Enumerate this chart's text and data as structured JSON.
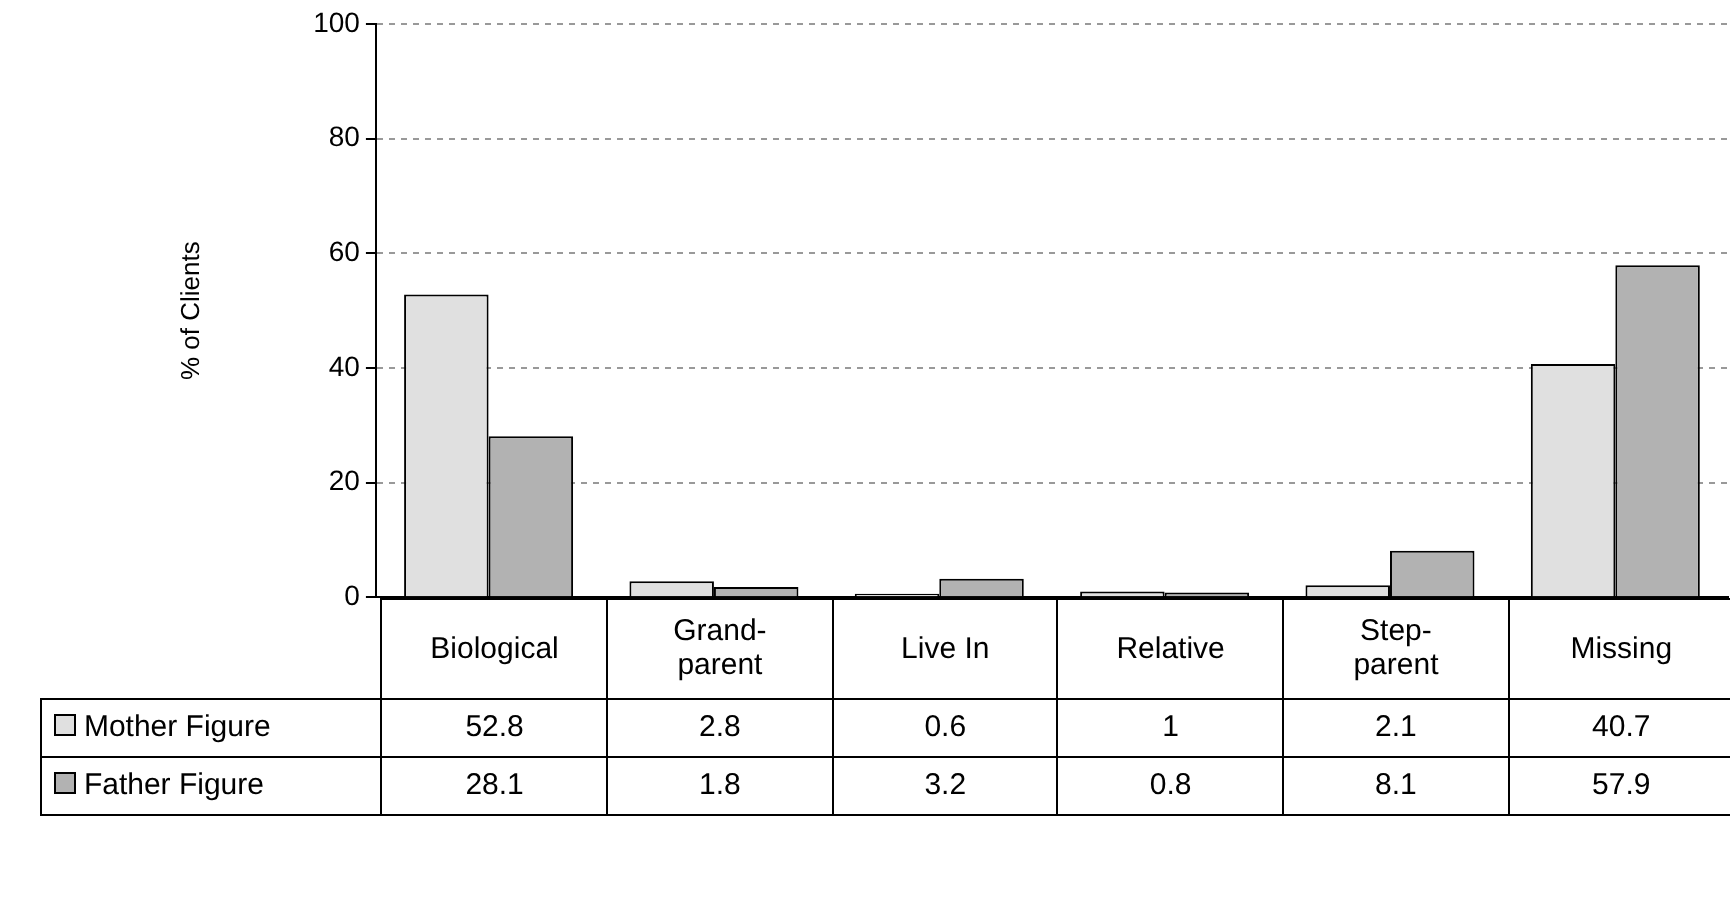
{
  "chart_data": {
    "type": "bar",
    "ylabel": "% of Clients",
    "categories": [
      "Biological",
      "Grand-\nparent",
      "Live In",
      "Relative",
      "Step-\nparent",
      "Missing"
    ],
    "series": [
      {
        "name": "Mother Figure",
        "color": "#e0e0e0",
        "values": [
          52.8,
          2.8,
          0.6,
          1,
          2.1,
          40.7
        ]
      },
      {
        "name": "Father Figure",
        "color": "#b2b2b2",
        "values": [
          28.1,
          1.8,
          3.2,
          0.8,
          8.1,
          57.9
        ]
      }
    ],
    "ylim": [
      0,
      100
    ],
    "yticks": [
      0,
      20,
      40,
      60,
      80,
      100
    ],
    "grid": "y",
    "legend": "bottom",
    "data_labels": true
  }
}
